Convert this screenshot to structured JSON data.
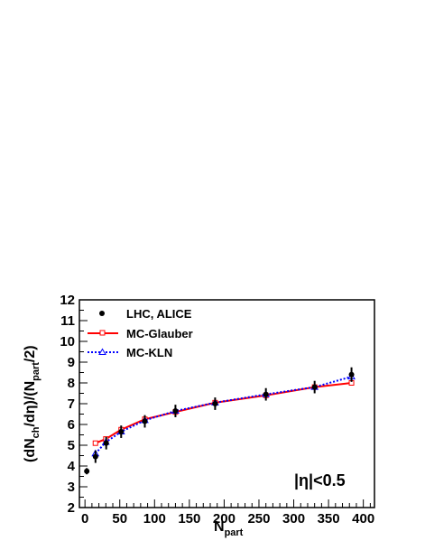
{
  "chart_data": {
    "type": "line",
    "xlabel": {
      "main": "N",
      "sub": "part"
    },
    "ylabel": {
      "pre": "(dN",
      "sub1": "ch",
      "mid": "/dη)/(N",
      "sub2": "part",
      "post": "/2)"
    },
    "xlim": [
      -8,
      416
    ],
    "ylim": [
      2,
      12
    ],
    "xticks": [
      0,
      50,
      100,
      150,
      200,
      250,
      300,
      350,
      400
    ],
    "yticks": [
      2,
      3,
      4,
      5,
      6,
      7,
      8,
      9,
      10,
      11,
      12
    ],
    "grid": false,
    "legend_position": "top-left",
    "annotation": "|η|<0.5",
    "series": [
      {
        "name": "LHC, ALICE",
        "style": "markers",
        "marker": "filled-circle",
        "color": "#000000",
        "x": [
          2.6,
          15.1,
          30.5,
          52,
          86,
          130,
          187,
          260,
          330,
          383
        ],
        "y": [
          3.75,
          4.45,
          5.1,
          5.65,
          6.15,
          6.65,
          7.0,
          7.45,
          7.8,
          8.4
        ],
        "err": [
          0.15,
          0.3,
          0.3,
          0.3,
          0.3,
          0.3,
          0.3,
          0.3,
          0.3,
          0.35
        ]
      },
      {
        "name": "MC-Glauber",
        "style": "line+markers",
        "marker": "open-square",
        "color": "#ff0000",
        "x": [
          15,
          30,
          52,
          86,
          130,
          187,
          260,
          330,
          383
        ],
        "y": [
          5.1,
          5.3,
          5.75,
          6.25,
          6.6,
          7.05,
          7.4,
          7.8,
          8.0
        ]
      },
      {
        "name": "MC-KLN",
        "style": "dotted-line+markers",
        "marker": "open-triangle",
        "color": "#0000ff",
        "x": [
          15,
          30,
          52,
          86,
          130,
          187,
          260,
          330,
          383
        ],
        "y": [
          4.6,
          5.15,
          5.65,
          6.2,
          6.65,
          7.05,
          7.45,
          7.8,
          8.3
        ]
      }
    ]
  }
}
